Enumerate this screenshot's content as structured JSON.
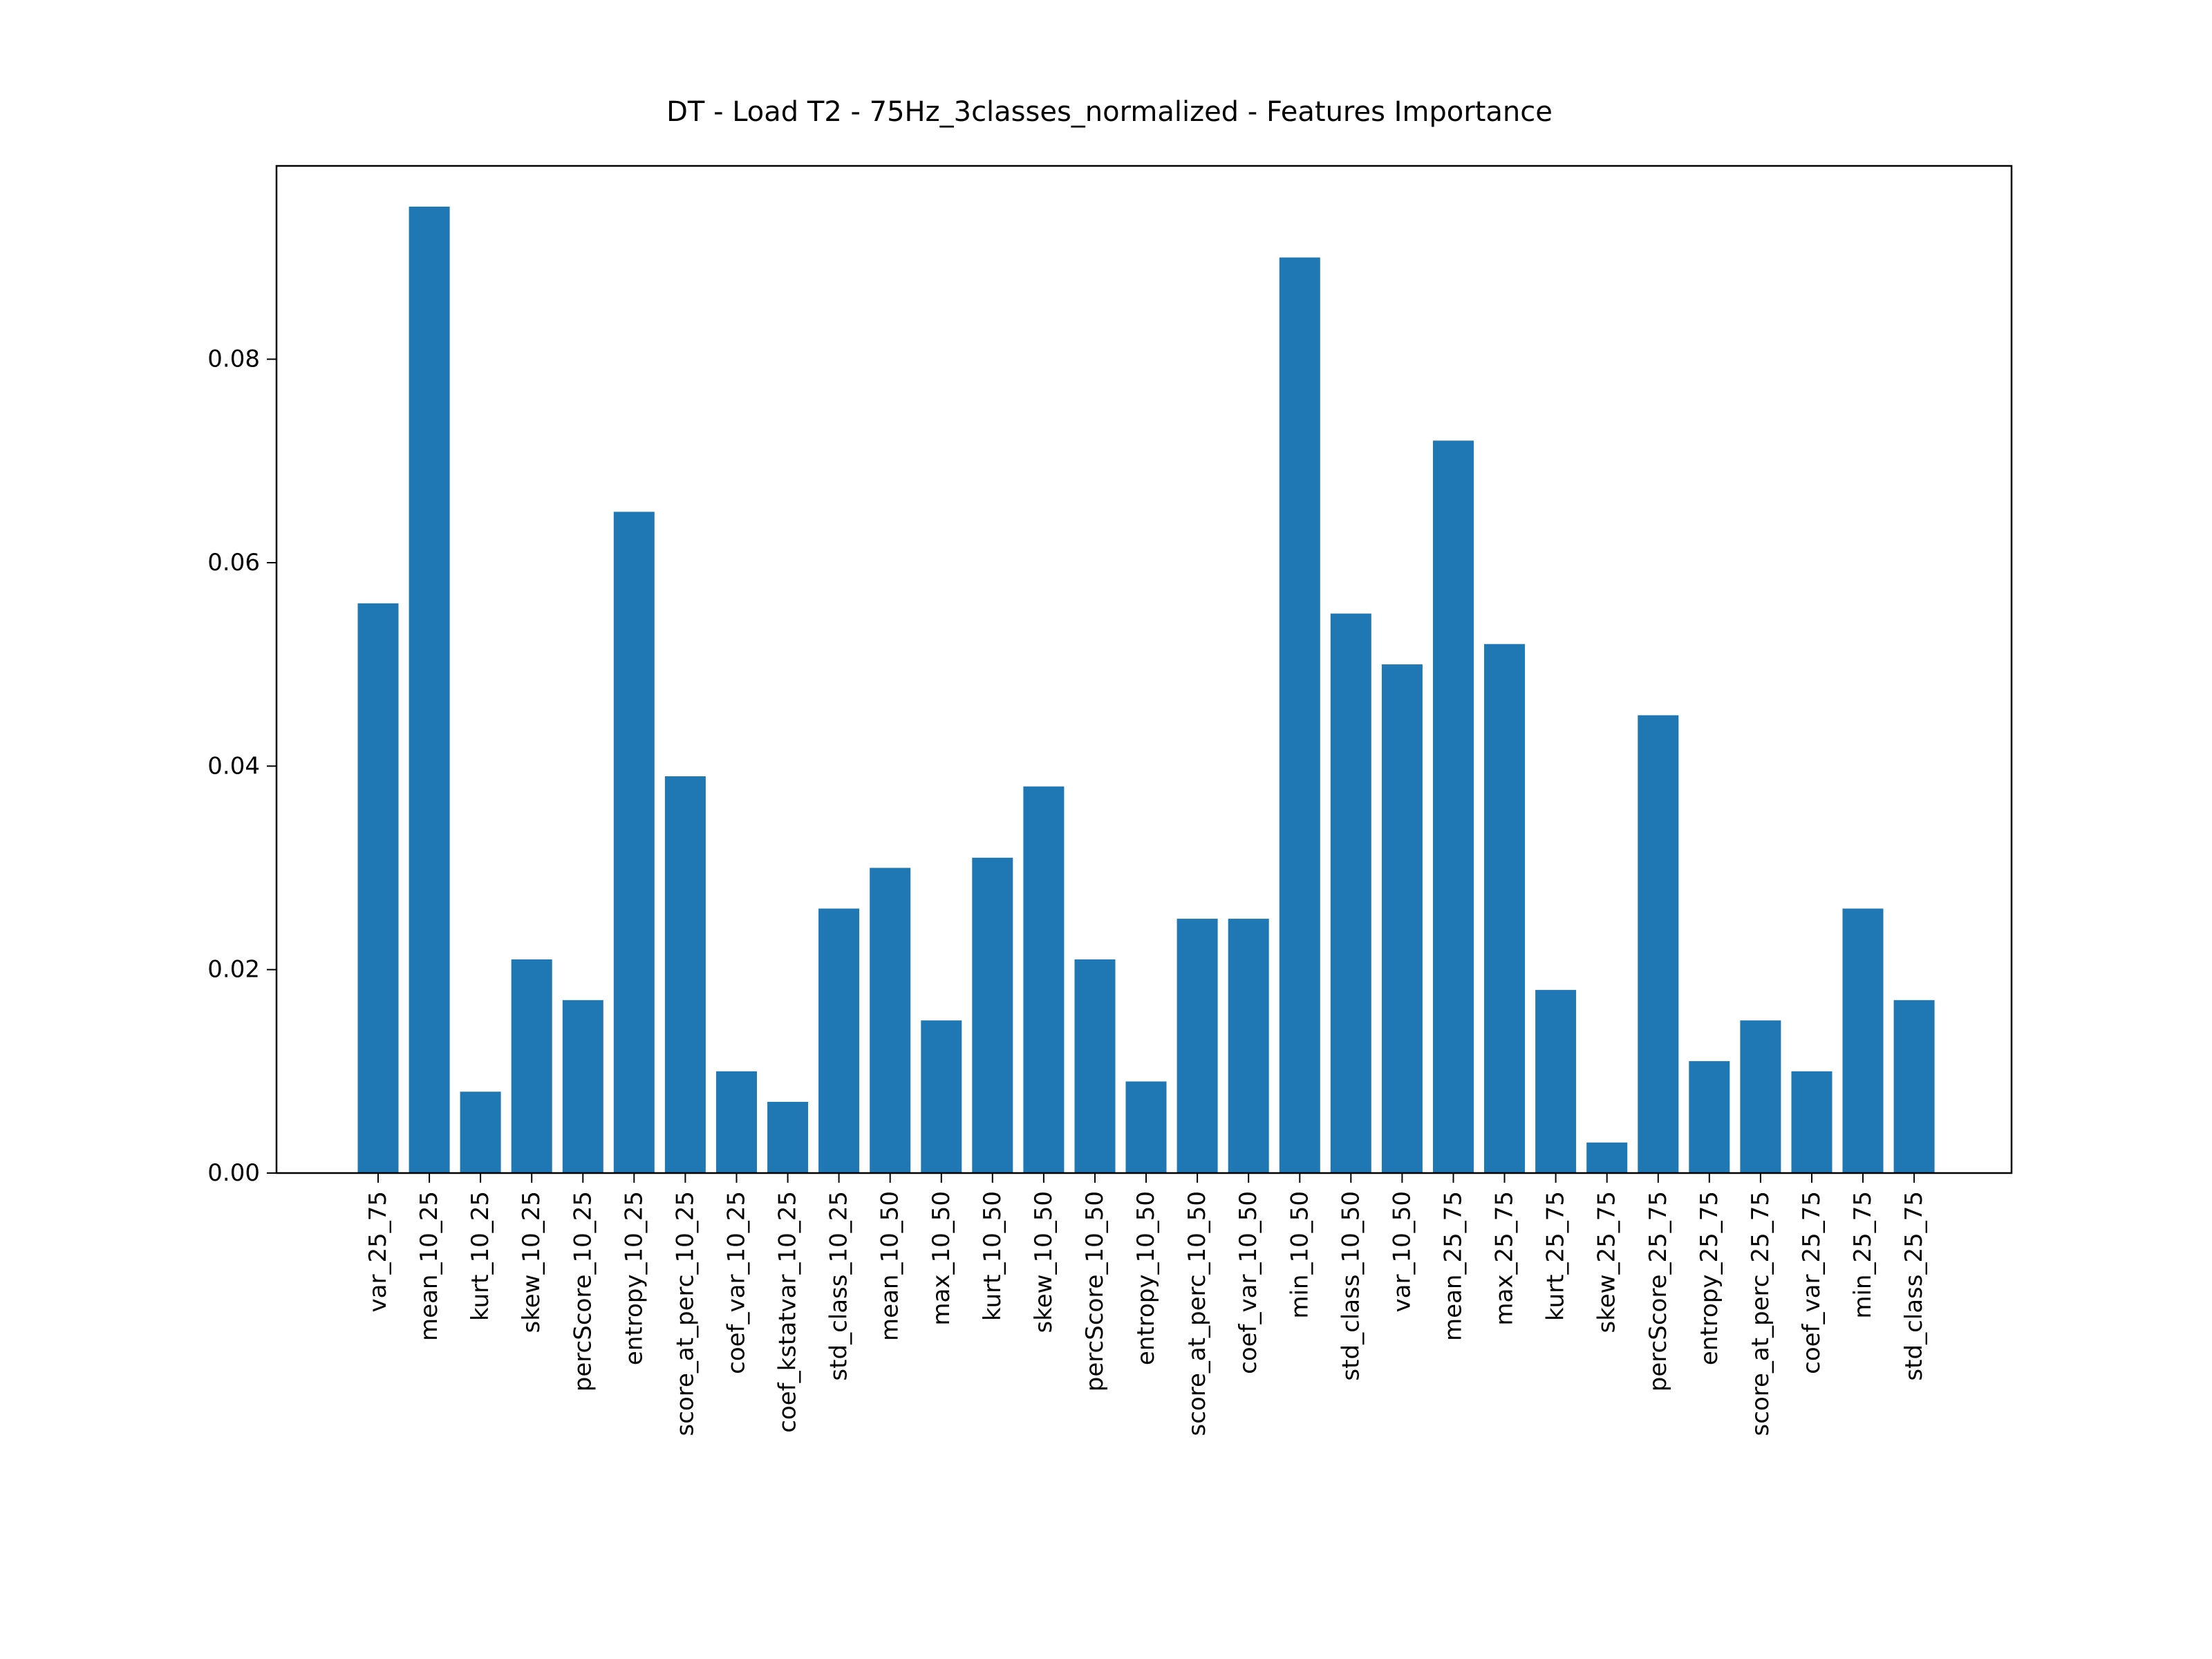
{
  "chart_data": {
    "type": "bar",
    "title": "DT - Load T2 - 75Hz_3classes_normalized - Features Importance",
    "xlabel": "",
    "ylabel": "",
    "ylim": [
      0,
      0.099
    ],
    "yticks": [
      "0.00",
      "0.02",
      "0.04",
      "0.06",
      "0.08"
    ],
    "categories": [
      "var_25_75",
      "mean_10_25",
      "kurt_10_25",
      "skew_10_25",
      "percScore_10_25",
      "entropy_10_25",
      "score_at_perc_10_25",
      "coef_var_10_25",
      "coef_kstatvar_10_25",
      "std_class_10_25",
      "mean_10_50",
      "max_10_50",
      "kurt_10_50",
      "skew_10_50",
      "percScore_10_50",
      "entropy_10_50",
      "score_at_perc_10_50",
      "coef_var_10_50",
      "min_10_50",
      "std_class_10_50",
      "var_10_50",
      "mean_25_75",
      "max_25_75",
      "kurt_25_75",
      "skew_25_75",
      "percScore_25_75",
      "entropy_25_75",
      "score_at_perc_25_75",
      "coef_var_25_75",
      "min_25_75",
      "std_class_25_75"
    ],
    "values": [
      0.056,
      0.095,
      0.008,
      0.021,
      0.017,
      0.065,
      0.039,
      0.01,
      0.007,
      0.026,
      0.03,
      0.015,
      0.031,
      0.038,
      0.021,
      0.009,
      0.025,
      0.025,
      0.09,
      0.055,
      0.05,
      0.072,
      0.052,
      0.018,
      0.003,
      0.045,
      0.011,
      0.015,
      0.01,
      0.026,
      0.017
    ],
    "bar_color": "#1f77b4",
    "grid": false,
    "legend": "none"
  }
}
